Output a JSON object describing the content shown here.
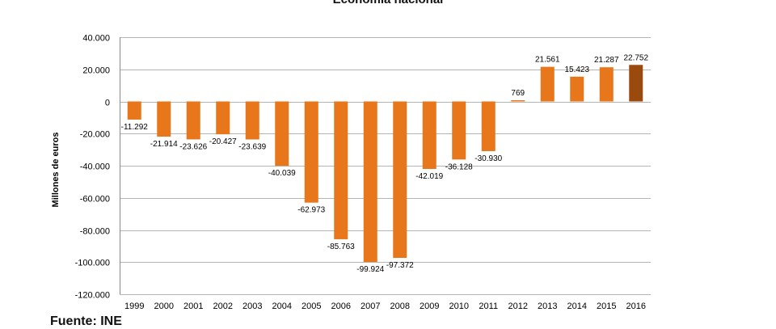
{
  "chart_data": {
    "type": "bar",
    "title": "Economía nacional",
    "ylabel": "Millones de euros",
    "xlabel": "",
    "ylim": [
      -120000,
      40000
    ],
    "yticks": [
      40000,
      20000,
      0,
      -20000,
      -40000,
      -60000,
      -80000,
      -100000,
      -120000
    ],
    "ytick_labels": [
      "40.000",
      "20.000",
      "0",
      "-20.000",
      "-40.000",
      "-60.000",
      "-80.000",
      "-100.000",
      "-120.000"
    ],
    "grid": true,
    "categories": [
      "1999",
      "2000",
      "2001",
      "2002",
      "2003",
      "2004",
      "2005",
      "2006",
      "2007",
      "2008",
      "2009",
      "2010",
      "2011",
      "2012",
      "2013",
      "2014",
      "2015",
      "2016"
    ],
    "values": [
      -11292,
      -21914,
      -23626,
      -20427,
      -23639,
      -40039,
      -62973,
      -85763,
      -99924,
      -97372,
      -42019,
      -36128,
      -30930,
      769,
      21561,
      15423,
      21287,
      22752
    ],
    "value_labels": [
      "-11.292",
      "-21.914",
      "-23.626",
      "-20.427",
      "-23.639",
      "-40.039",
      "-62.973",
      "-85.763",
      "-99.924",
      "-97.372",
      "-42.019",
      "-36.128",
      "-30.930",
      "769",
      "21.561",
      "15.423",
      "21.287",
      "22.752"
    ],
    "colors": {
      "bar": "#e8761a",
      "highlight": "#9a4a0c",
      "grid": "#b5b5b5"
    },
    "highlight_index": 17
  },
  "source_note": "Fuente: INE"
}
